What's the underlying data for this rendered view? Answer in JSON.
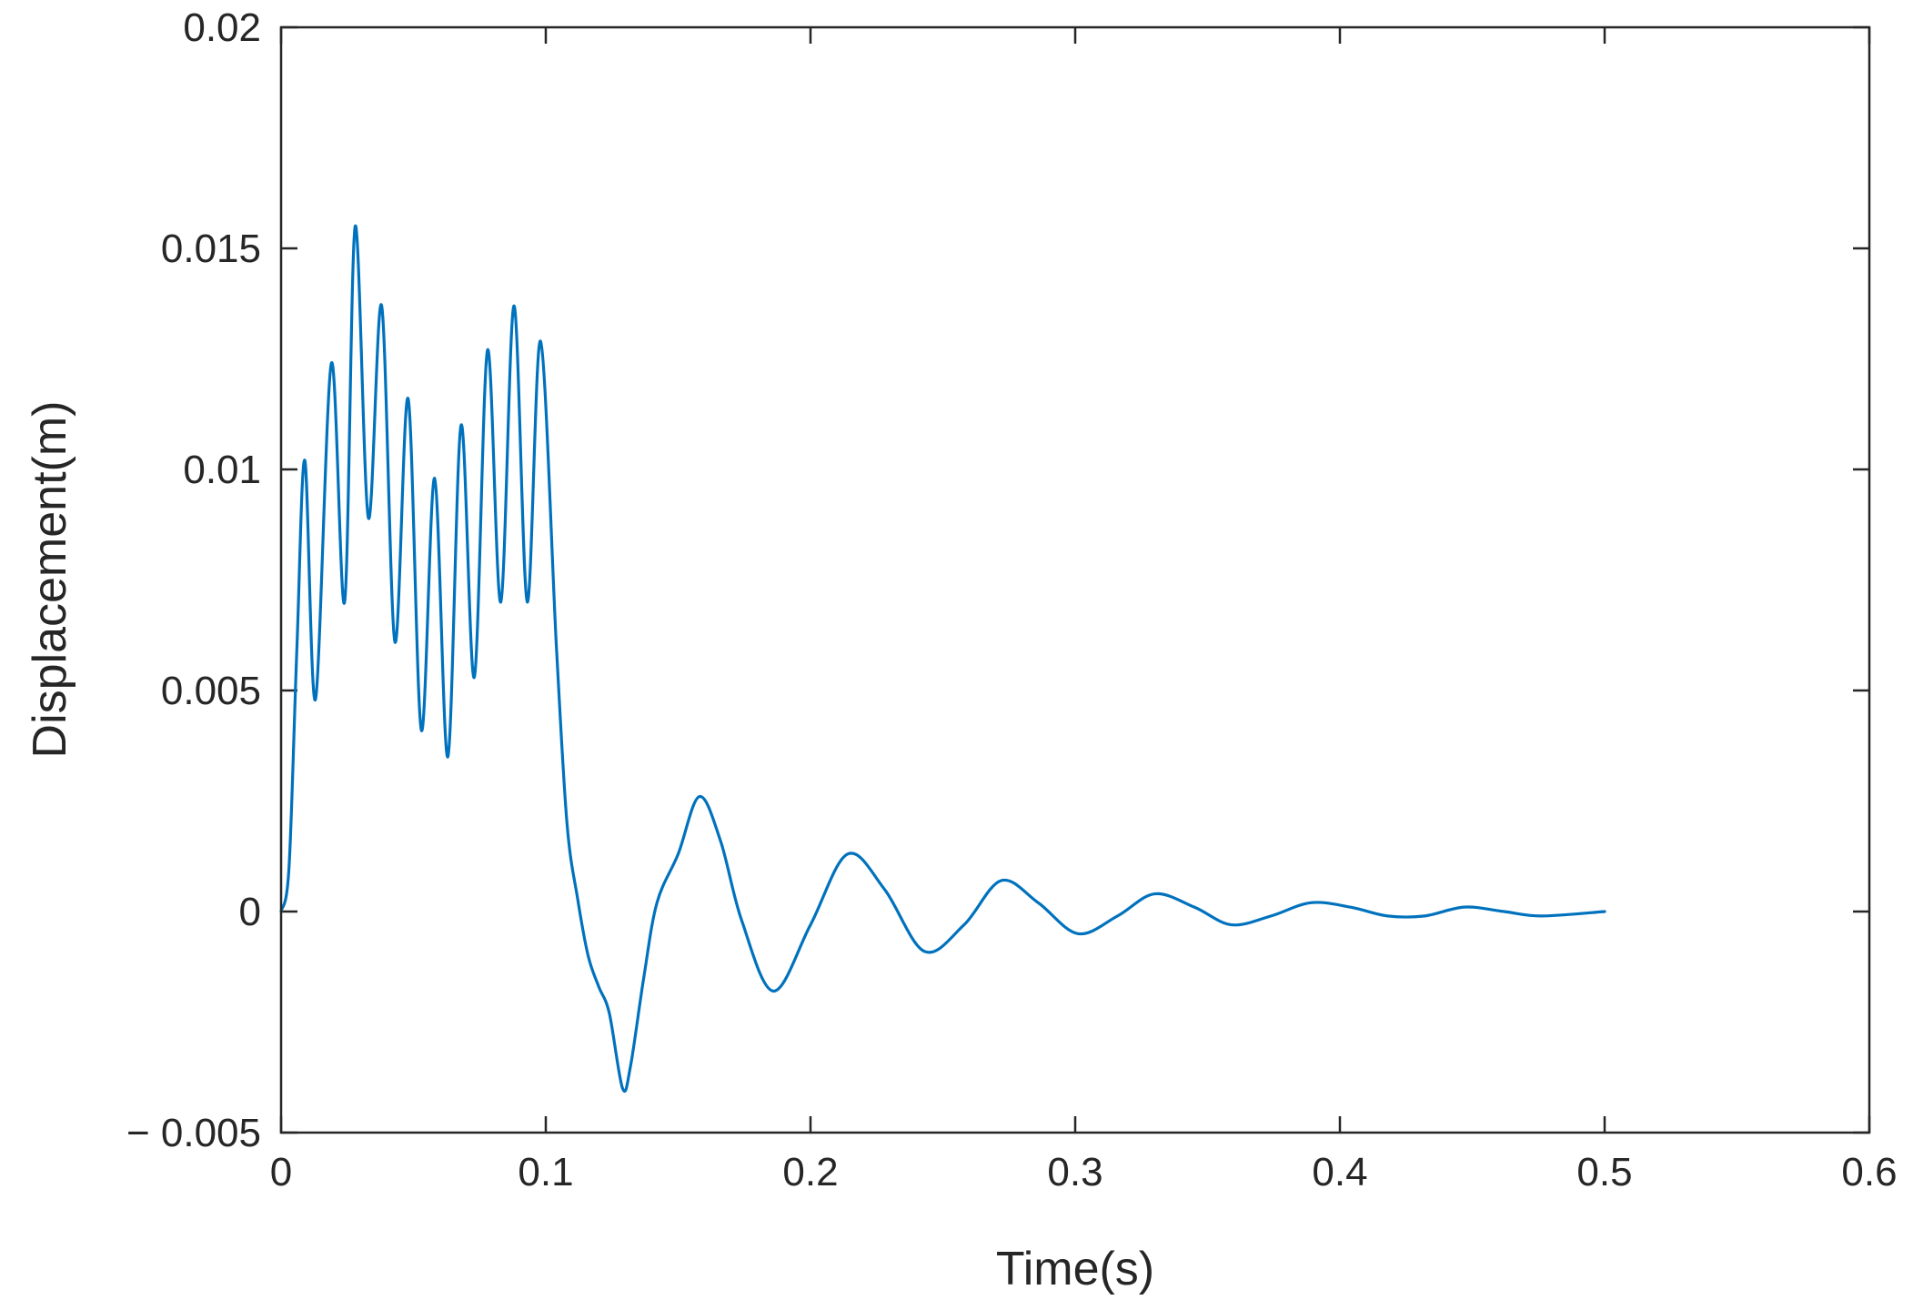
{
  "chart_data": {
    "type": "line",
    "title": "",
    "xlabel": "Time(s)",
    "ylabel": "Displacement(m)",
    "xlim": [
      0,
      0.6
    ],
    "ylim": [
      -0.005,
      0.02
    ],
    "xticks": [
      0,
      0.1,
      0.2,
      0.3,
      0.4,
      0.5,
      0.6
    ],
    "xtick_labels": [
      "0",
      "0.1",
      "0.2",
      "0.3",
      "0.4",
      "0.5",
      "0.6"
    ],
    "yticks": [
      -0.005,
      0,
      0.005,
      0.01,
      0.015,
      0.02
    ],
    "ytick_labels": [
      "− 0.005",
      "0",
      "0.005",
      "0.01",
      "0.015",
      "0.02"
    ],
    "grid": false,
    "legend": "none",
    "series": [
      {
        "color": "#0072bd",
        "x": [
          0,
          0.003,
          0.006,
          0.009,
          0.013,
          0.019,
          0.024,
          0.028,
          0.033,
          0.038,
          0.043,
          0.048,
          0.053,
          0.058,
          0.063,
          0.068,
          0.073,
          0.078,
          0.083,
          0.088,
          0.093,
          0.098,
          0.104,
          0.108,
          0.112,
          0.116,
          0.12,
          0.124,
          0.129,
          0.132,
          0.137,
          0.142,
          0.15,
          0.158,
          0.166,
          0.174,
          0.186,
          0.2,
          0.214,
          0.228,
          0.243,
          0.258,
          0.272,
          0.286,
          0.301,
          0.316,
          0.33,
          0.345,
          0.359,
          0.374,
          0.389,
          0.404,
          0.418,
          0.432,
          0.447,
          0.462,
          0.476,
          0.5
        ],
        "y": [
          0,
          0.001,
          0.006,
          0.0102,
          0.0048,
          0.0124,
          0.007,
          0.0155,
          0.0089,
          0.0137,
          0.0061,
          0.0116,
          0.0041,
          0.0098,
          0.0035,
          0.011,
          0.0053,
          0.0127,
          0.007,
          0.0137,
          0.007,
          0.0129,
          0.006,
          0.002,
          0.0003,
          -0.001,
          -0.0017,
          -0.0023,
          -0.004,
          -0.0035,
          -0.0015,
          0.0002,
          0.0013,
          0.0026,
          0.0016,
          -0.0002,
          -0.0018,
          -0.0003,
          0.0013,
          0.0005,
          -0.0009,
          -0.0003,
          0.0007,
          0.0002,
          -0.0005,
          -0.0001,
          0.0004,
          0.0001,
          -0.0003,
          -0.0001,
          0.0002,
          0.0001,
          -0.0001,
          -0.0001,
          0.0001,
          0,
          -0.0001,
          0
        ]
      }
    ]
  }
}
